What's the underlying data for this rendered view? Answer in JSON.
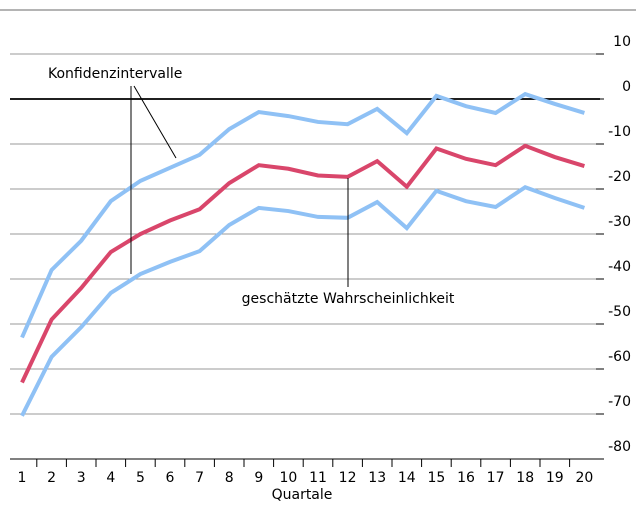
{
  "chart_data": {
    "type": "line",
    "x_label": "Quartale",
    "categories": [
      "1",
      "2",
      "3",
      "4",
      "5",
      "6",
      "7",
      "8",
      "9",
      "10",
      "11",
      "12",
      "13",
      "14",
      "15",
      "16",
      "17",
      "18",
      "19",
      "20"
    ],
    "series": [
      {
        "color": "#8fc1f5",
        "values": [
          -53,
          -38,
          -31.5,
          -22.7,
          -18.2,
          -15.3,
          -12.4,
          -6.7,
          -2.9,
          -3.8,
          -5.1,
          -5.6,
          -2.2,
          -7.6,
          0.7,
          -1.6,
          -3.1,
          1.1,
          -1.1,
          -3.1
        ]
      },
      {
        "color": "#d9466b",
        "values": [
          -63,
          -49,
          -42,
          -34,
          -30,
          -27,
          -24.5,
          -18.7,
          -14.7,
          -15.5,
          -17,
          -17.3,
          -13.8,
          -19.5,
          -11,
          -13.3,
          -14.7,
          -10.4,
          -12.9,
          -14.9
        ]
      },
      {
        "color": "#8fc1f5",
        "values": [
          -70.4,
          -57.3,
          -50.7,
          -43.1,
          -38.9,
          -36.2,
          -33.8,
          -28,
          -24.2,
          -24.9,
          -26.2,
          -26.4,
          -22.9,
          -28.7,
          -20.4,
          -22.7,
          -24,
          -19.6,
          -22,
          -24.2
        ]
      }
    ],
    "annotations": [
      "Konfidenzintervalle",
      "geschätzte Wahrscheinlichkeit"
    ],
    "ylim": [
      -80,
      10
    ],
    "yticks": [
      10,
      0,
      -10,
      -20,
      -30,
      -40,
      -50,
      -60,
      -70,
      -80
    ],
    "grid": true
  }
}
